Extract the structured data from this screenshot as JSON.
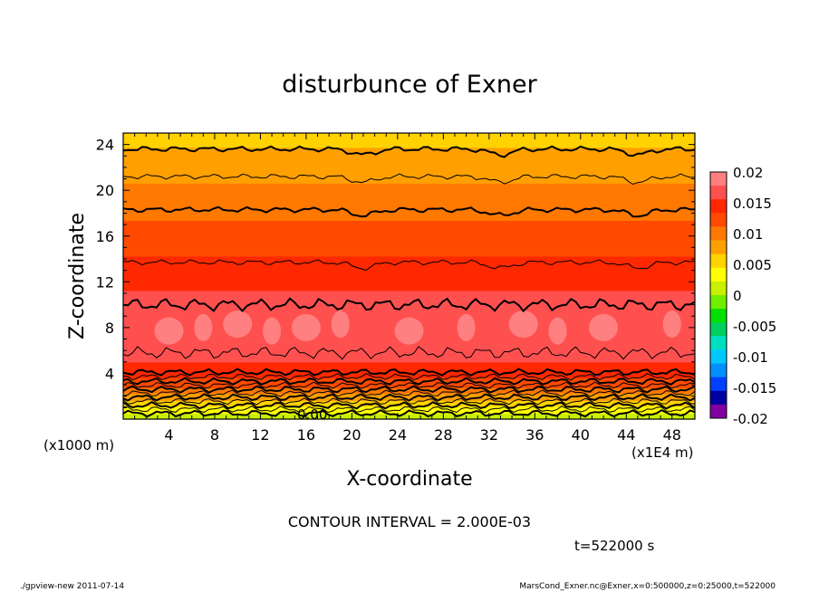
{
  "chart_data": {
    "type": "heatmap",
    "title": "disturbunce of Exner",
    "xlabel": "X-coordinate",
    "ylabel": "Z-coordinate",
    "x_unit": "(x1E4 m)",
    "y_unit": "(x1000 m)",
    "x_ticks": [
      "4",
      "8",
      "12",
      "16",
      "20",
      "24",
      "28",
      "32",
      "36",
      "40",
      "44",
      "48"
    ],
    "y_ticks": [
      "4",
      "8",
      "12",
      "16",
      "20",
      "24"
    ],
    "xlim": [
      0,
      50
    ],
    "ylim": [
      0,
      25
    ],
    "colorbar_ticks": [
      "0.02",
      "0.015",
      "0.01",
      "0.005",
      "0",
      "-0.005",
      "-0.01",
      "-0.015",
      "-0.02"
    ],
    "colorbar_range": [
      -0.02,
      0.02
    ],
    "contour_interval_label": "CONTOUR INTERVAL = 2.000E-03",
    "contour_zero_label": "0.00",
    "time_label": "t=522000 s",
    "field_profile": {
      "z": [
        0,
        0.5,
        1,
        1.5,
        2,
        2.5,
        3,
        3.5,
        4,
        5,
        6,
        7,
        8,
        9,
        10,
        11,
        12,
        13,
        14,
        15,
        16,
        17,
        18,
        19,
        20,
        21,
        22,
        23,
        24,
        25
      ],
      "value": [
        0.0,
        0.002,
        0.004,
        0.006,
        0.008,
        0.01,
        0.012,
        0.013,
        0.014,
        0.0155,
        0.0165,
        0.0172,
        0.0175,
        0.0172,
        0.0165,
        0.0158,
        0.015,
        0.0142,
        0.0135,
        0.0128,
        0.0121,
        0.0114,
        0.0107,
        0.01,
        0.0093,
        0.0086,
        0.0079,
        0.0072,
        0.0065,
        0.006
      ]
    },
    "colors": [
      "#8000a0",
      "#0000a0",
      "#0040ff",
      "#0090ff",
      "#00c8ff",
      "#00e0c0",
      "#00d060",
      "#00e000",
      "#70ee00",
      "#c8f000",
      "#ffff00",
      "#ffd200",
      "#ffa000",
      "#ff7800",
      "#ff4a00",
      "#ff2800",
      "#ff5050",
      "#ff8080"
    ]
  },
  "footer": {
    "left": "./gpview-new   2011-07-14",
    "right": "MarsCond_Exner.nc@Exner,x=0:500000,z=0:25000,t=522000"
  }
}
